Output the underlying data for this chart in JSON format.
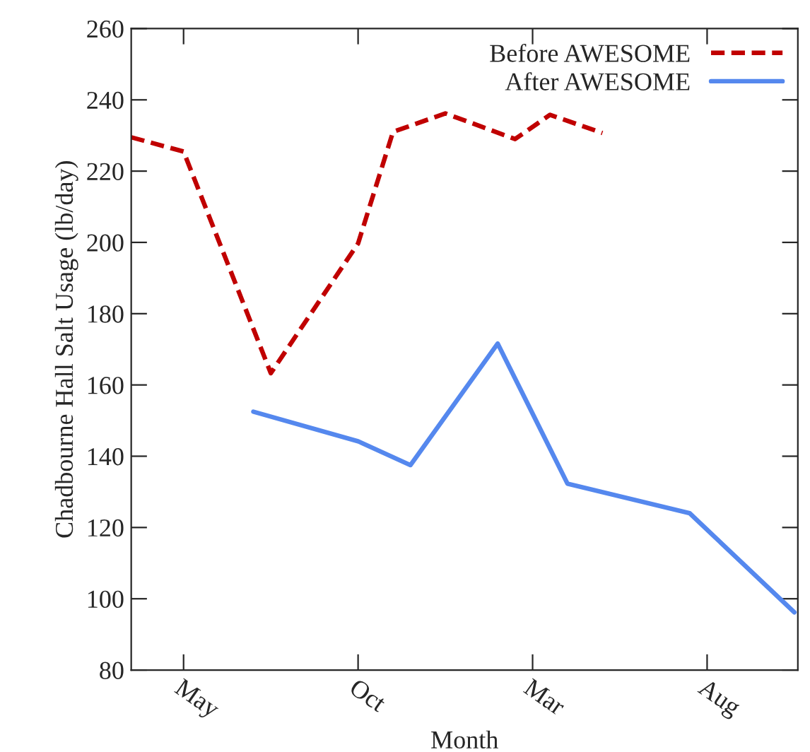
{
  "chart_data": {
    "type": "line",
    "xlabel": "Month",
    "ylabel": "Chadbourne Hall Salt Usage (lb/day)",
    "categories": [
      null,
      null,
      null,
      "May",
      null,
      null,
      null,
      null,
      null,
      null,
      null,
      null,
      null,
      "Oct",
      null,
      null,
      null,
      null,
      null,
      null,
      null,
      null,
      null,
      "Mar",
      null,
      null,
      null,
      null,
      null,
      null,
      null,
      null,
      null,
      "Aug",
      null,
      null,
      null,
      null,
      null
    ],
    "ylim": [
      80,
      260
    ],
    "yticks": [
      80,
      100,
      120,
      140,
      160,
      180,
      200,
      220,
      240,
      260
    ],
    "grid": false,
    "legend": "top right",
    "series": [
      {
        "name": "Before AWESOME",
        "color": "#c00000",
        "line_style": "dashed",
        "values": [
          229.5,
          null,
          null,
          225.5,
          null,
          null,
          null,
          null,
          163.3,
          null,
          null,
          null,
          null,
          199.7,
          null,
          231,
          null,
          null,
          236.2,
          null,
          null,
          null,
          229,
          null,
          235.8,
          null,
          null,
          230.7,
          null,
          null,
          null,
          null,
          null,
          null,
          null,
          null,
          null,
          null,
          null
        ]
      },
      {
        "name": "After AWESOME",
        "color": "#5588ee",
        "line_style": "solid",
        "values": [
          null,
          null,
          null,
          null,
          null,
          null,
          null,
          152.5,
          null,
          null,
          null,
          null,
          null,
          144.2,
          null,
          null,
          137.5,
          null,
          null,
          null,
          null,
          171.6,
          null,
          null,
          null,
          132.3,
          null,
          null,
          null,
          null,
          null,
          null,
          124,
          null,
          null,
          null,
          null,
          null,
          96.2
        ]
      }
    ]
  }
}
